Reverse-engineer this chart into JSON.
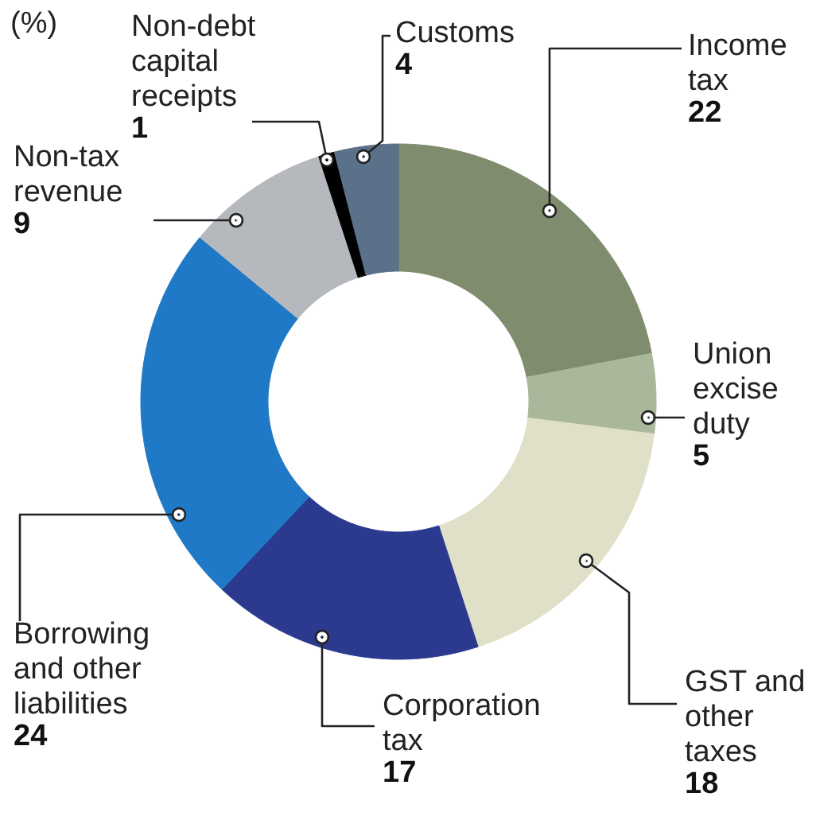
{
  "chart_data": {
    "type": "donut",
    "title": "(%)",
    "categories": [
      "Income tax",
      "Union excise duty",
      "GST and other taxes",
      "Corporation tax",
      "Borrowing and other liabilities",
      "Non-tax revenue",
      "Non-debt capital receipts",
      "Customs"
    ],
    "values": [
      22,
      5,
      18,
      17,
      24,
      9,
      1,
      4
    ],
    "colors": [
      "#7f8c6e",
      "#a9b89a",
      "#e0e0c8",
      "#2b3a8e",
      "#1f79c6",
      "#b5b9bd",
      "#000000",
      "#5a7189"
    ],
    "data_labels": true
  }
}
